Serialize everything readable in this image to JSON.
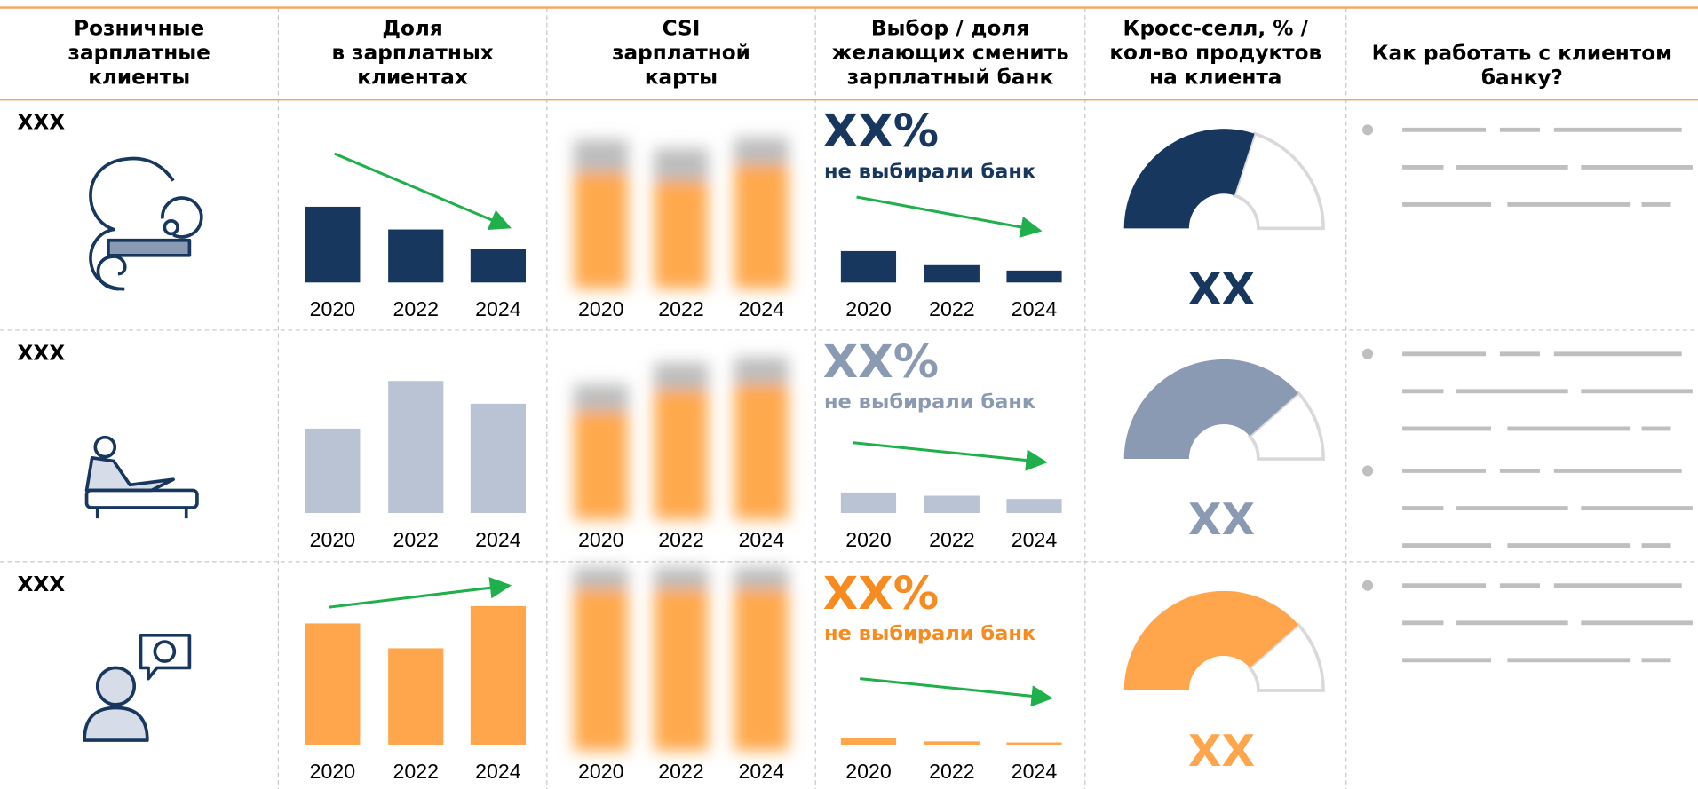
{
  "header": {
    "columns": [
      [
        "Розничные",
        "зарплатные",
        "клиенты"
      ],
      [
        "Доля",
        "в зарплатных",
        "клиентах"
      ],
      [
        "CSI",
        "зарплатной",
        "карты"
      ],
      [
        "Выбор / доля",
        "желающих сменить",
        "зарплатный банк"
      ],
      [
        "Кросс-селл, % /",
        "кол-во продуктов",
        "на клиента"
      ],
      [
        "Как работать с клиентом",
        "банку?"
      ]
    ]
  },
  "rows": [
    {
      "label": "XXX",
      "bar_color": "#17375e",
      "gauge_color": "#17375e",
      "text_color": "#17375e",
      "share": {
        "type": "bar",
        "categories": [
          "2020",
          "2022",
          "2024"
        ],
        "values": [
          70,
          49,
          31
        ],
        "ylim": [
          0,
          140
        ]
      },
      "csi": {
        "type": "stacked_bar",
        "categories": [
          "2020",
          "2022",
          "2024"
        ],
        "series": [
          {
            "color": "#ffa94d",
            "values": [
              108,
              100,
              115
            ]
          },
          {
            "color": "#bdbdbd",
            "values": [
              30,
              30,
              25
            ]
          }
        ],
        "ylim": [
          0,
          180
        ]
      },
      "choice": {
        "type": "bar",
        "headline": "XX%",
        "caption": "не выбирали банк",
        "categories": [
          "2020",
          "2022",
          "2024"
        ],
        "values": [
          29,
          16,
          11
        ],
        "ylim": [
          0,
          140
        ]
      },
      "cross_sell": {
        "type": "gauge",
        "value": 60,
        "range": [
          0,
          100
        ],
        "label": "XX"
      }
    },
    {
      "label": "XXX",
      "bar_color": "#b9c3d3",
      "gauge_color": "#8b9ab3",
      "text_color": "#8b9ab3",
      "share": {
        "type": "bar",
        "categories": [
          "2020",
          "2022",
          "2024"
        ],
        "values": [
          78,
          122,
          101
        ],
        "ylim": [
          0,
          140
        ]
      },
      "csi": {
        "type": "stacked_bar",
        "categories": [
          "2020",
          "2022",
          "2024"
        ],
        "series": [
          {
            "color": "#ffa94d",
            "values": [
              100,
              120,
              125
            ]
          },
          {
            "color": "#bdbdbd",
            "values": [
              25,
              25,
              25
            ]
          }
        ],
        "ylim": [
          0,
          180
        ]
      },
      "choice": {
        "type": "bar",
        "headline": "XX%",
        "caption": "не выбирали банк",
        "categories": [
          "2020",
          "2022",
          "2024"
        ],
        "values": [
          19,
          16,
          13
        ],
        "ylim": [
          0,
          140
        ]
      },
      "cross_sell": {
        "type": "gauge",
        "value": 77,
        "range": [
          0,
          100
        ],
        "label": "XX"
      }
    },
    {
      "label": "XXX",
      "bar_color": "#ffa64d",
      "gauge_color": "#ffa64d",
      "text_color": "#f68b1f",
      "share": {
        "type": "bar",
        "categories": [
          "2020",
          "2022",
          "2024"
        ],
        "values": [
          112,
          89,
          128
        ],
        "ylim": [
          0,
          140
        ]
      },
      "csi": {
        "type": "stacked_bar",
        "categories": [
          "2020",
          "2022",
          "2024"
        ],
        "series": [
          {
            "color": "#ffa94d",
            "values": [
              150,
              150,
              150
            ]
          },
          {
            "color": "#bdbdbd",
            "values": [
              20,
              20,
              20
            ]
          }
        ],
        "ylim": [
          0,
          180
        ]
      },
      "choice": {
        "type": "bar",
        "headline": "XX%",
        "caption": "не выбирали банк",
        "categories": [
          "2020",
          "2022",
          "2024"
        ],
        "values": [
          6,
          3,
          2
        ],
        "ylim": [
          0,
          140
        ]
      },
      "cross_sell": {
        "type": "gauge",
        "value": 77,
        "range": [
          0,
          100
        ],
        "label": "XX"
      }
    }
  ]
}
